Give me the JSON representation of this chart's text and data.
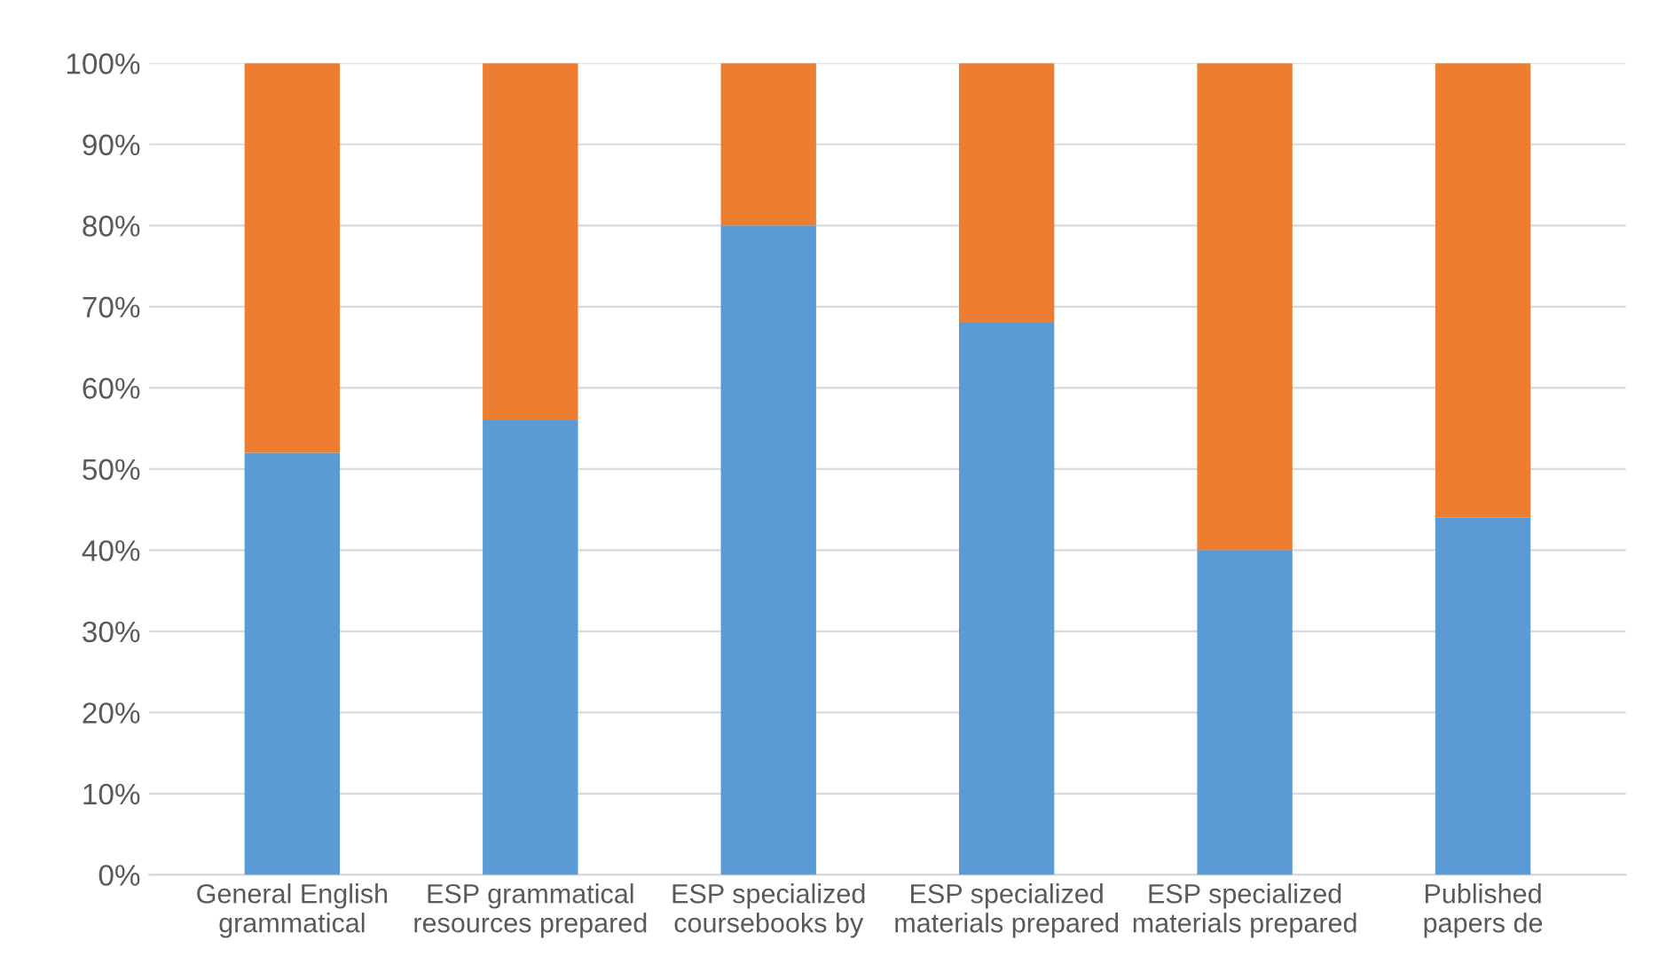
{
  "chart_data": {
    "type": "bar",
    "stacked": true,
    "categories": [
      "General English\ngrammatical",
      "ESP grammatical\nresources prepared",
      "ESP specialized\ncoursebooks by",
      "ESP specialized\nmaterials prepared",
      "ESP specialized\nmaterials prepared",
      "Published\npapers de"
    ],
    "series": [
      {
        "color": "#5b9bd5",
        "values": [
          52,
          56,
          80,
          68,
          40,
          44
        ]
      },
      {
        "color": "#ed7d31",
        "values": [
          48,
          44,
          20,
          32,
          60,
          56
        ]
      }
    ],
    "ylim": [
      0,
      100
    ],
    "yticks": [
      {
        "value": 0,
        "label": "0%"
      },
      {
        "value": 10,
        "label": "10%"
      },
      {
        "value": 20,
        "label": "20%"
      },
      {
        "value": 30,
        "label": "30%"
      },
      {
        "value": 40,
        "label": "40%"
      },
      {
        "value": 50,
        "label": "50%"
      },
      {
        "value": 60,
        "label": "60%"
      },
      {
        "value": 70,
        "label": "70%"
      },
      {
        "value": 80,
        "label": "80%"
      },
      {
        "value": 90,
        "label": "90%"
      },
      {
        "value": 100,
        "label": "100%"
      }
    ],
    "grid": "y",
    "legend": false
  }
}
